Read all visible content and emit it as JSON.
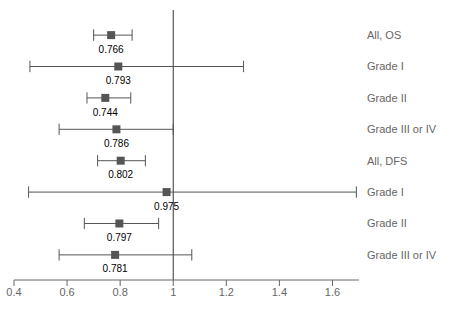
{
  "chart_data": {
    "type": "forest",
    "categories": [
      "All, OS",
      "Grade I",
      "Grade II",
      "Grade III or IV",
      "All, DFS",
      "Grade I",
      "Grade II",
      "Grade III or IV"
    ],
    "values": [
      0.766,
      0.793,
      0.744,
      0.786,
      0.802,
      0.975,
      0.797,
      0.781
    ],
    "ci_low": [
      0.7,
      0.46,
      0.675,
      0.57,
      0.715,
      0.455,
      0.665,
      0.57
    ],
    "ci_high": [
      0.845,
      1.265,
      0.84,
      1.0,
      0.895,
      1.69,
      0.945,
      1.07
    ],
    "xlim": [
      0.4,
      1.7
    ],
    "xticks": [
      0.4,
      0.6,
      0.8,
      1,
      1.2,
      1.4,
      1.6
    ],
    "reference_line": 1,
    "data_labels": true,
    "color": "#555555"
  }
}
